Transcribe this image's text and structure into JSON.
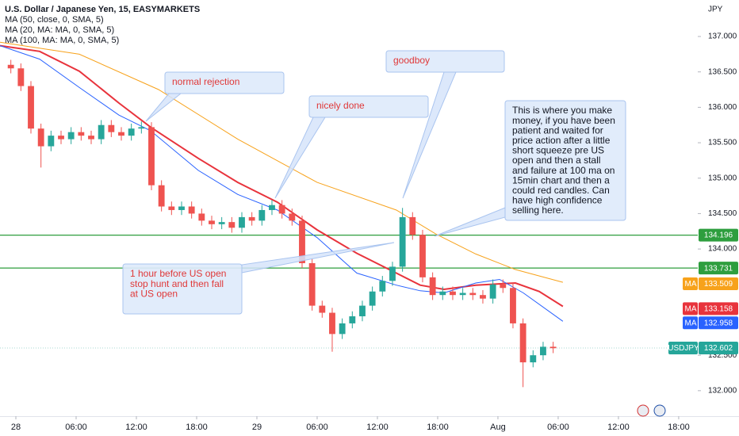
{
  "chart_data": {
    "type": "candlestick",
    "title": "U.S. Dollar / Japanese Yen, 15, EASYMARKETS",
    "symbol": "USDJPY",
    "currency": "JPY",
    "ma_tag": "MA",
    "up_color": "#26a69a",
    "down_color": "#ef5350",
    "x": [
      -0.5,
      0.5,
      1.5,
      2.5,
      3.5,
      4.5,
      5.5,
      6.5,
      7.5,
      8.5,
      9.5,
      10.5,
      11.5,
      12.5,
      13.5,
      14.5,
      15.5,
      16.5,
      17.5,
      18.5,
      19.5,
      20.5,
      21.5,
      22.5,
      23.5,
      24.5,
      25.5,
      26.5,
      27.5,
      28.5,
      29.5,
      30.5,
      31.5,
      32.5,
      33.5,
      34.5,
      35.5,
      36.5,
      37.5,
      38.5,
      39.5,
      40.5,
      41.5,
      42.5,
      43.5,
      44.5,
      45.5,
      46.5,
      47.5,
      48.5,
      49.5,
      50.5,
      51.5,
      52.5,
      53.5
    ],
    "open": [
      136.6,
      136.55,
      136.3,
      135.7,
      135.45,
      135.6,
      135.55,
      135.65,
      135.6,
      135.55,
      135.75,
      135.65,
      135.6,
      135.7,
      135.72,
      134.9,
      134.6,
      134.55,
      134.6,
      134.5,
      134.4,
      134.35,
      134.38,
      134.3,
      134.45,
      134.4,
      134.55,
      134.62,
      134.5,
      134.4,
      133.8,
      133.2,
      133.1,
      132.8,
      132.95,
      133.05,
      133.2,
      133.4,
      133.55,
      133.75,
      134.45,
      134.2,
      133.6,
      133.35,
      133.4,
      133.35,
      133.38,
      133.35,
      133.3,
      133.5,
      133.45,
      132.95,
      132.4,
      132.5,
      132.62
    ],
    "high": [
      136.67,
      136.62,
      136.37,
      135.77,
      135.67,
      135.67,
      135.72,
      135.72,
      135.67,
      135.82,
      135.82,
      135.72,
      135.77,
      135.8,
      135.79,
      134.97,
      134.67,
      134.67,
      134.67,
      134.57,
      134.47,
      134.45,
      134.45,
      134.52,
      134.52,
      134.62,
      134.69,
      134.69,
      134.57,
      134.47,
      133.87,
      133.27,
      133.17,
      133.02,
      133.12,
      133.27,
      133.47,
      133.62,
      133.82,
      134.58,
      134.52,
      134.27,
      133.67,
      133.47,
      133.47,
      133.45,
      133.45,
      133.42,
      133.57,
      133.57,
      133.52,
      133.02,
      132.57,
      132.69,
      132.69
    ],
    "low": [
      136.48,
      136.23,
      135.63,
      135.15,
      135.38,
      135.48,
      135.48,
      135.53,
      135.48,
      135.48,
      135.58,
      135.53,
      135.53,
      135.63,
      134.83,
      134.53,
      134.48,
      134.48,
      134.43,
      134.33,
      134.28,
      134.28,
      134.23,
      134.23,
      134.33,
      134.33,
      134.48,
      134.43,
      134.33,
      133.73,
      133.13,
      133.03,
      132.55,
      132.73,
      132.88,
      132.98,
      133.13,
      133.33,
      133.48,
      133.68,
      134.13,
      133.53,
      133.28,
      133.28,
      133.28,
      133.28,
      133.28,
      133.23,
      133.23,
      133.38,
      132.88,
      132.05,
      132.33,
      132.43,
      132.53
    ],
    "close": [
      136.55,
      136.3,
      135.7,
      135.45,
      135.6,
      135.55,
      135.65,
      135.6,
      135.55,
      135.75,
      135.65,
      135.6,
      135.7,
      135.72,
      134.9,
      134.6,
      134.55,
      134.6,
      134.5,
      134.4,
      134.35,
      134.38,
      134.3,
      134.45,
      134.4,
      134.55,
      134.62,
      134.5,
      134.4,
      133.8,
      133.2,
      133.1,
      132.8,
      132.95,
      133.05,
      133.2,
      133.4,
      133.55,
      133.75,
      134.45,
      134.2,
      133.6,
      133.35,
      133.4,
      133.35,
      133.38,
      133.35,
      133.3,
      133.5,
      133.45,
      132.95,
      132.4,
      132.5,
      132.62,
      132.6
    ],
    "last_price": 132.602,
    "series": [
      {
        "name": "MA (50, close, 0, SMA, 5)",
        "color": "#e8333c",
        "width": 2,
        "last": 133.158,
        "x": [
          -1.58,
          2.37,
          6.32,
          10.26,
          13.42,
          18.16,
          22.1,
          26.05,
          30,
          33.95,
          37.89,
          40.26,
          42.63,
          45.79,
          49.74,
          52.11,
          54.47
        ],
        "values": [
          136.87,
          136.79,
          136.51,
          136.06,
          135.72,
          135.28,
          134.94,
          134.66,
          134.27,
          133.94,
          133.66,
          133.49,
          133.43,
          133.49,
          133.52,
          133.4,
          133.19
        ]
      },
      {
        "name": "MA (20, MA: MA, 0, SMA, 5)",
        "color": "#2962ff",
        "width": 1,
        "last": 132.958,
        "x": [
          -1.58,
          2.37,
          6.32,
          10.26,
          13.42,
          18.16,
          22.1,
          26.05,
          30,
          33.95,
          37.89,
          40.26,
          42.63,
          45.79,
          48.16,
          50.53,
          54.47
        ],
        "values": [
          136.87,
          136.68,
          136.28,
          135.89,
          135.67,
          135.11,
          134.77,
          134.55,
          134.16,
          133.66,
          133.49,
          133.41,
          133.38,
          133.52,
          133.57,
          133.38,
          132.98
        ]
      },
      {
        "name": "MA (100, MA: MA, 0, SMA, 5)",
        "color": "#f7a21b",
        "width": 1,
        "last": 133.509,
        "x": [
          -1.58,
          6.32,
          14.21,
          22.1,
          30,
          37.89,
          41.84,
          45.79,
          49.74,
          54.47
        ],
        "values": [
          136.92,
          136.75,
          136.25,
          135.55,
          134.94,
          134.55,
          134.21,
          133.93,
          133.71,
          133.53
        ]
      }
    ],
    "hlines": [
      {
        "value": 134.196,
        "color": "#2e9e3e"
      },
      {
        "value": 133.731,
        "color": "#2e9e3e"
      }
    ],
    "xlim": [
      -1.58,
      67.9
    ],
    "xticks": [
      {
        "value": 0,
        "label": "28"
      },
      {
        "value": 6,
        "label": "06:00"
      },
      {
        "value": 12,
        "label": "12:00"
      },
      {
        "value": 18,
        "label": "18:00"
      },
      {
        "value": 24,
        "label": "29"
      },
      {
        "value": 30,
        "label": "06:00"
      },
      {
        "value": 36,
        "label": "12:00"
      },
      {
        "value": 42,
        "label": "18:00"
      },
      {
        "value": 48,
        "label": "Aug"
      },
      {
        "value": 54,
        "label": "06:00"
      },
      {
        "value": 60,
        "label": "12:00"
      },
      {
        "value": 66,
        "label": "18:00"
      }
    ],
    "ylim": [
      131.64,
      137.515
    ],
    "yticks": [
      {
        "value": 132,
        "label": "132.000"
      },
      {
        "value": 132.5,
        "label": "132.500"
      },
      {
        "value": 134,
        "label": "134.000"
      },
      {
        "value": 134.5,
        "label": "134.500"
      },
      {
        "value": 135,
        "label": "135.000"
      },
      {
        "value": 135.5,
        "label": "135.500"
      },
      {
        "value": 136,
        "label": "136.000"
      },
      {
        "value": 136.5,
        "label": "136.500"
      },
      {
        "value": 137,
        "label": "137.000"
      }
    ],
    "annotations": [
      {
        "lines": [
          "normal rejection"
        ],
        "color": "#e03838"
      },
      {
        "lines": [
          "nicely done"
        ],
        "color": "#e03838"
      },
      {
        "lines": [
          "goodboy"
        ],
        "color": "#e03838"
      },
      {
        "lines": [
          "This is where you make",
          "money, if you have been",
          "patient and waited for",
          "price action after a little",
          "short squeeze pre US",
          "open and then a stall",
          "and failure at 100 ma on",
          "15min chart and then a",
          "could red candles. Can",
          "have high confidence",
          "selling here."
        ],
        "color": "#131722"
      },
      {
        "lines": [
          "1 hour before US open",
          "stop hunt and then fall",
          "at US open"
        ],
        "color": "#e03838"
      }
    ]
  }
}
